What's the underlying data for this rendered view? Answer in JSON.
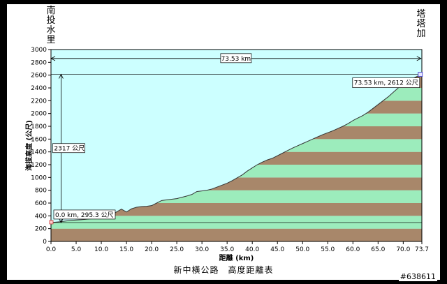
{
  "chart_data": {
    "type": "area",
    "title": "新中橫公路　高度距離表",
    "xlabel": "距離 (km)",
    "ylabel": "海拔高度 (公尺)",
    "xlim": [
      0,
      73.7
    ],
    "ylim": [
      0,
      3000
    ],
    "xticks": [
      "0.0",
      "5.0",
      "10.0",
      "15.0",
      "20.0",
      "25.0",
      "30.0",
      "35.0",
      "40.0",
      "45.0",
      "50.0",
      "55.0",
      "60.0",
      "65.0",
      "70.0",
      "73.7"
    ],
    "xtick_values": [
      0,
      5,
      10,
      15,
      20,
      25,
      30,
      35,
      40,
      45,
      50,
      55,
      60,
      65,
      70,
      73.7
    ],
    "yticks": [
      0,
      200,
      400,
      600,
      800,
      1000,
      1200,
      1400,
      1600,
      1800,
      2000,
      2200,
      2400,
      2600,
      2800,
      3000
    ],
    "start_label": "南投水里",
    "end_label": "塔塔加",
    "series": [
      {
        "x": [
          0,
          2,
          4,
          6,
          8,
          10,
          12,
          13,
          14,
          15,
          16,
          17,
          18,
          19,
          20,
          21,
          22,
          23,
          24,
          25,
          26,
          27,
          28,
          29,
          30,
          31,
          32,
          33,
          34,
          35,
          36,
          37,
          38,
          39,
          40,
          41,
          42,
          43,
          44,
          45,
          46,
          47,
          48,
          49,
          50,
          51,
          52,
          53,
          54,
          55,
          56,
          57,
          58,
          59,
          60,
          61,
          62,
          63,
          64,
          65,
          66,
          67,
          68,
          69,
          70,
          71,
          72,
          73,
          73.53
        ],
        "values": [
          295,
          310,
          330,
          340,
          355,
          375,
          410,
          460,
          505,
          460,
          510,
          535,
          545,
          550,
          560,
          600,
          640,
          650,
          660,
          670,
          690,
          710,
          735,
          780,
          790,
          800,
          820,
          850,
          880,
          910,
          950,
          995,
          1040,
          1100,
          1150,
          1200,
          1240,
          1275,
          1300,
          1340,
          1380,
          1420,
          1460,
          1495,
          1530,
          1565,
          1600,
          1635,
          1670,
          1700,
          1730,
          1765,
          1800,
          1840,
          1890,
          1930,
          1970,
          2020,
          2080,
          2140,
          2200,
          2260,
          2330,
          2400,
          2460,
          2510,
          2550,
          2590,
          2612
        ]
      }
    ],
    "bands": {
      "step": 200,
      "colors": [
        "#a8876a",
        "#9cecbc"
      ]
    },
    "annotations": [
      {
        "text": "73.53 km",
        "kind": "span-x",
        "from": 0,
        "to": 73.53,
        "y": 2860
      },
      {
        "text": "2317 公尺",
        "kind": "span-y",
        "x": 2,
        "from": 295.3,
        "to": 2612
      },
      {
        "text": "73.53 km, 2612 公尺",
        "kind": "point",
        "x": 73.53,
        "y": 2612
      },
      {
        "text": "0.0 km, 295.3 公尺",
        "kind": "point",
        "x": 0,
        "y": 295.3
      }
    ],
    "colors": {
      "sky": "#ccffff",
      "line": "#333333",
      "grid": "#000000"
    },
    "grid": false,
    "legend": "none"
  },
  "watermark": "#638611"
}
